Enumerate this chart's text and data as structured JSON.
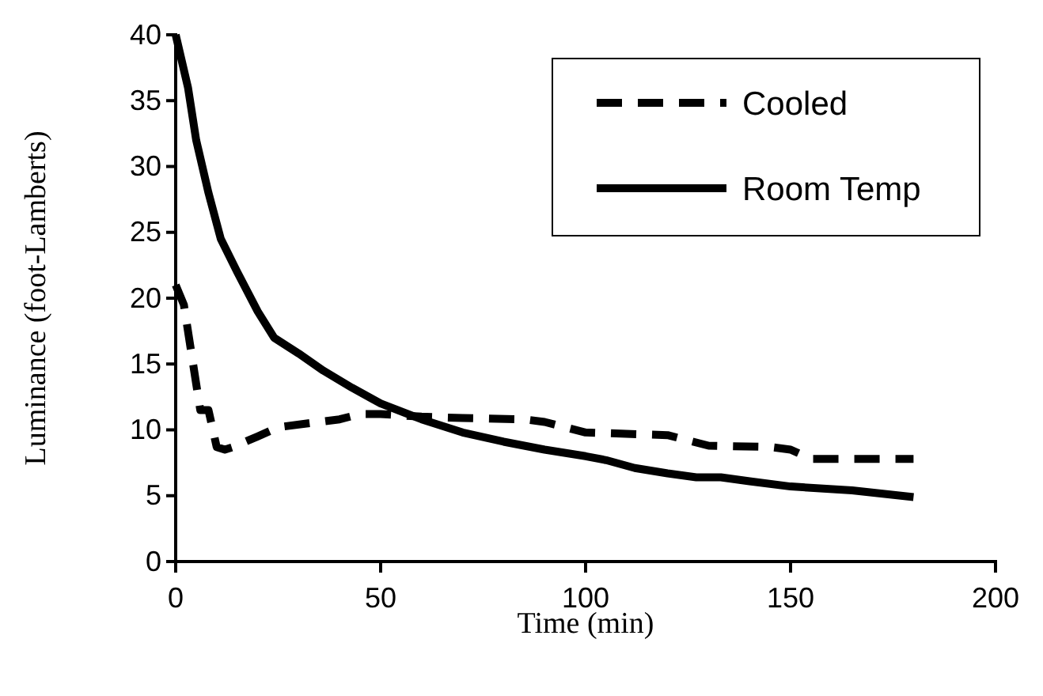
{
  "chart_data": {
    "type": "line",
    "xlabel": "Time (min)",
    "ylabel": "Luminance (foot-Lamberts)",
    "xlim": [
      0,
      200
    ],
    "xticks": [
      0,
      50,
      100,
      150,
      200
    ],
    "ylim": [
      0,
      40
    ],
    "yticks": [
      0,
      5,
      10,
      15,
      20,
      25,
      30,
      35,
      40
    ],
    "grid": false,
    "legend": "top right",
    "series": [
      {
        "name": "Cooled",
        "color": "#000000",
        "line_style": "dashed",
        "x": [
          0,
          2,
          4,
          6,
          8,
          10,
          12,
          14,
          20,
          25,
          35,
          40,
          45,
          50,
          60,
          70,
          85,
          90,
          100,
          120,
          130,
          145,
          150,
          155,
          180
        ],
        "values": [
          21,
          19.5,
          15.5,
          11.5,
          11.5,
          8.7,
          8.5,
          8.7,
          9.5,
          10.2,
          10.6,
          10.8,
          11.2,
          11.2,
          11,
          10.9,
          10.8,
          10.6,
          9.8,
          9.6,
          8.8,
          8.7,
          8.5,
          7.8,
          7.8
        ]
      },
      {
        "name": "Room Temp",
        "color": "#000000",
        "line_style": "solid",
        "x": [
          0,
          3,
          5,
          8,
          11,
          15,
          20,
          24,
          30,
          36,
          43,
          50,
          60,
          70,
          80,
          90,
          100,
          105,
          112,
          120,
          127,
          133,
          140,
          150,
          165,
          180
        ],
        "values": [
          40,
          36,
          32,
          28,
          24.5,
          22,
          19,
          17,
          15.8,
          14.5,
          13.2,
          12,
          10.8,
          9.8,
          9.1,
          8.5,
          8,
          7.7,
          7.1,
          6.7,
          6.4,
          6.4,
          6.1,
          5.7,
          5.4,
          4.9
        ]
      }
    ]
  }
}
